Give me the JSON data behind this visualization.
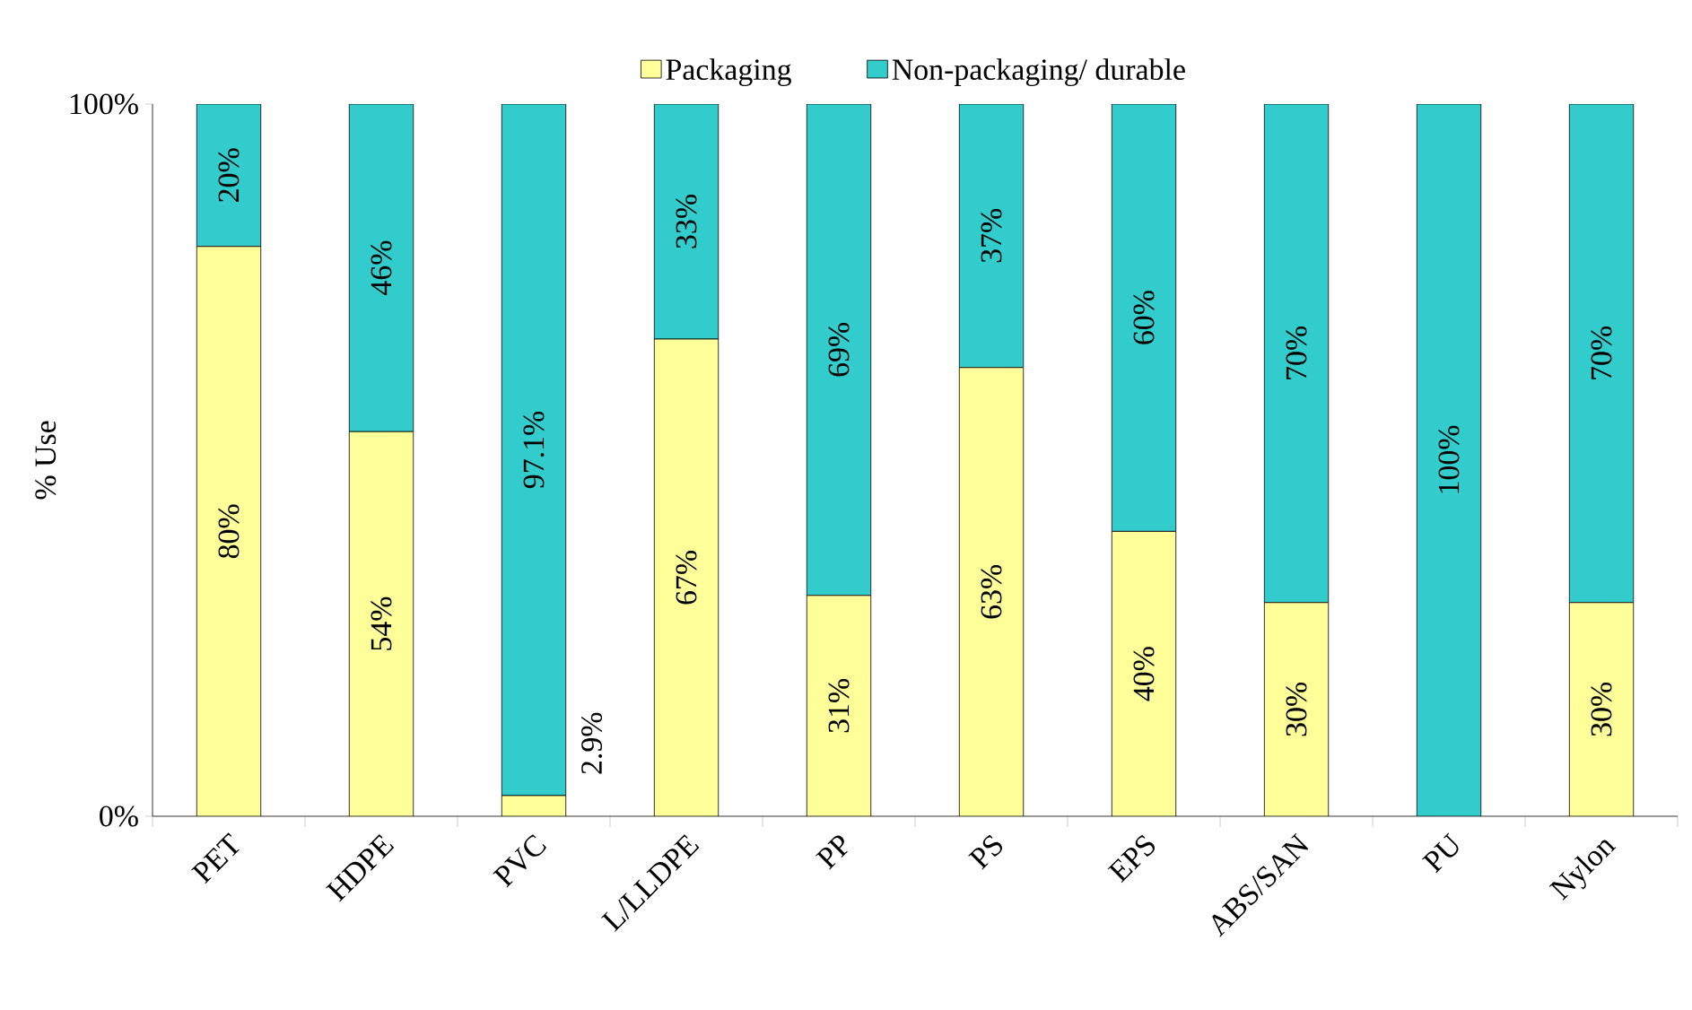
{
  "chart_data": {
    "type": "bar",
    "stacked": true,
    "ylabel": "% Use",
    "legend": "top",
    "categories": [
      "PET",
      "HDPE",
      "PVC",
      "L/LLDPE",
      "PP",
      "PS",
      "EPS",
      "ABS/SAN",
      "PU",
      "Nylon"
    ],
    "series": [
      {
        "name": "Packaging",
        "color": "#ffff99",
        "values": [
          80,
          54,
          2.9,
          67,
          31,
          63,
          40,
          30,
          0,
          30
        ],
        "value_labels": [
          "80%",
          "54%",
          "2.9%",
          "67%",
          "31%",
          "63%",
          "40%",
          "30%",
          null,
          "30%"
        ]
      },
      {
        "name": "Non-packaging/ durable",
        "color": "#33cccc",
        "values": [
          20,
          46,
          97.1,
          33,
          69,
          37,
          60,
          70,
          100,
          70
        ],
        "value_labels": [
          "20%",
          "46%",
          "97.1%",
          "33%",
          "69%",
          "37%",
          "60%",
          "70%",
          "100%",
          "70%"
        ]
      }
    ],
    "ylim": [
      0,
      100
    ],
    "yticks": [
      {
        "value": 0,
        "label": "0%"
      },
      {
        "value": 100,
        "label": "100%"
      }
    ]
  }
}
